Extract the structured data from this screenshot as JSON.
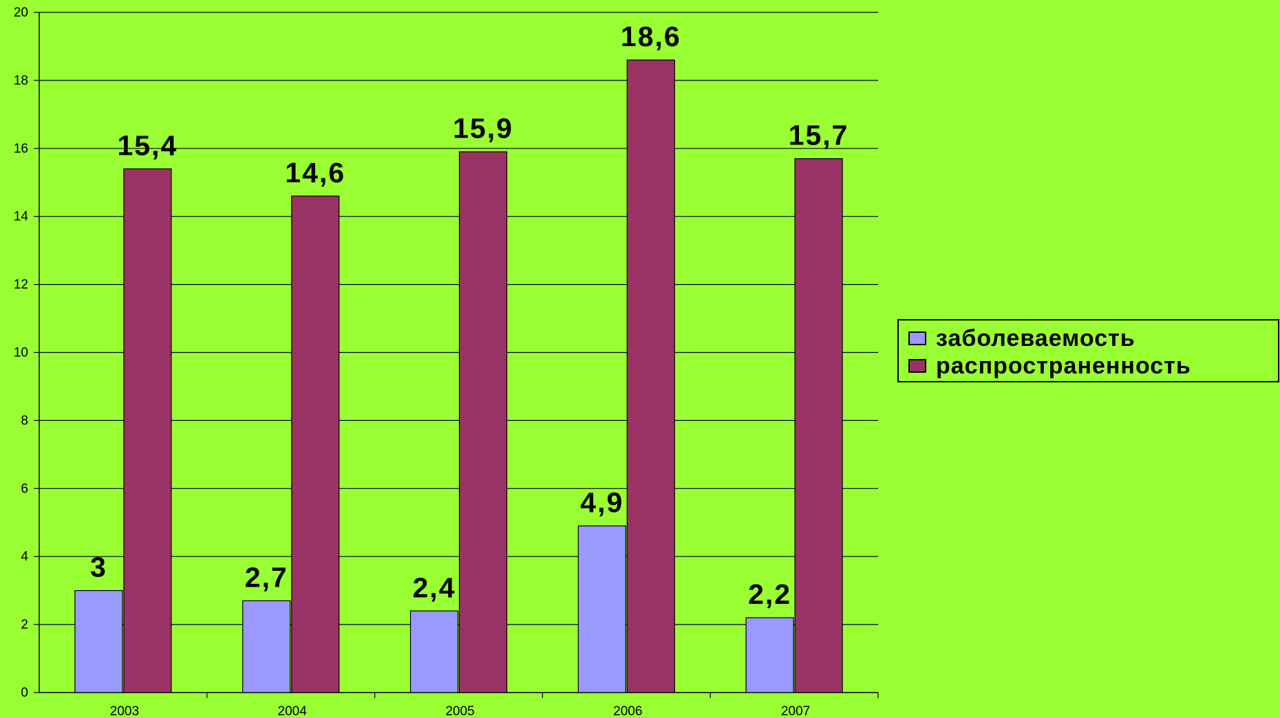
{
  "chart_data": {
    "type": "bar",
    "categories": [
      "2003",
      "2004",
      "2005",
      "2006",
      "2007"
    ],
    "series": [
      {
        "name": "заболеваемость",
        "values": [
          3,
          2.7,
          2.4,
          4.9,
          2.2
        ],
        "labels": [
          "3",
          "2,7",
          "2,4",
          "4,9",
          "2,2"
        ],
        "color": "#9999ff"
      },
      {
        "name": "распространенность",
        "values": [
          15.4,
          14.6,
          15.9,
          18.6,
          15.7
        ],
        "labels": [
          "15,4",
          "14,6",
          "15,9",
          "18,6",
          "15,7"
        ],
        "color": "#993366"
      }
    ],
    "ylim": [
      0,
      20
    ],
    "yticks": [
      "0",
      "2",
      "4",
      "6",
      "8",
      "10",
      "12",
      "14",
      "16",
      "18",
      "20"
    ],
    "grid": true,
    "legend_position": "right",
    "background_color": "#99ff33",
    "gridline_color": "#000000"
  }
}
